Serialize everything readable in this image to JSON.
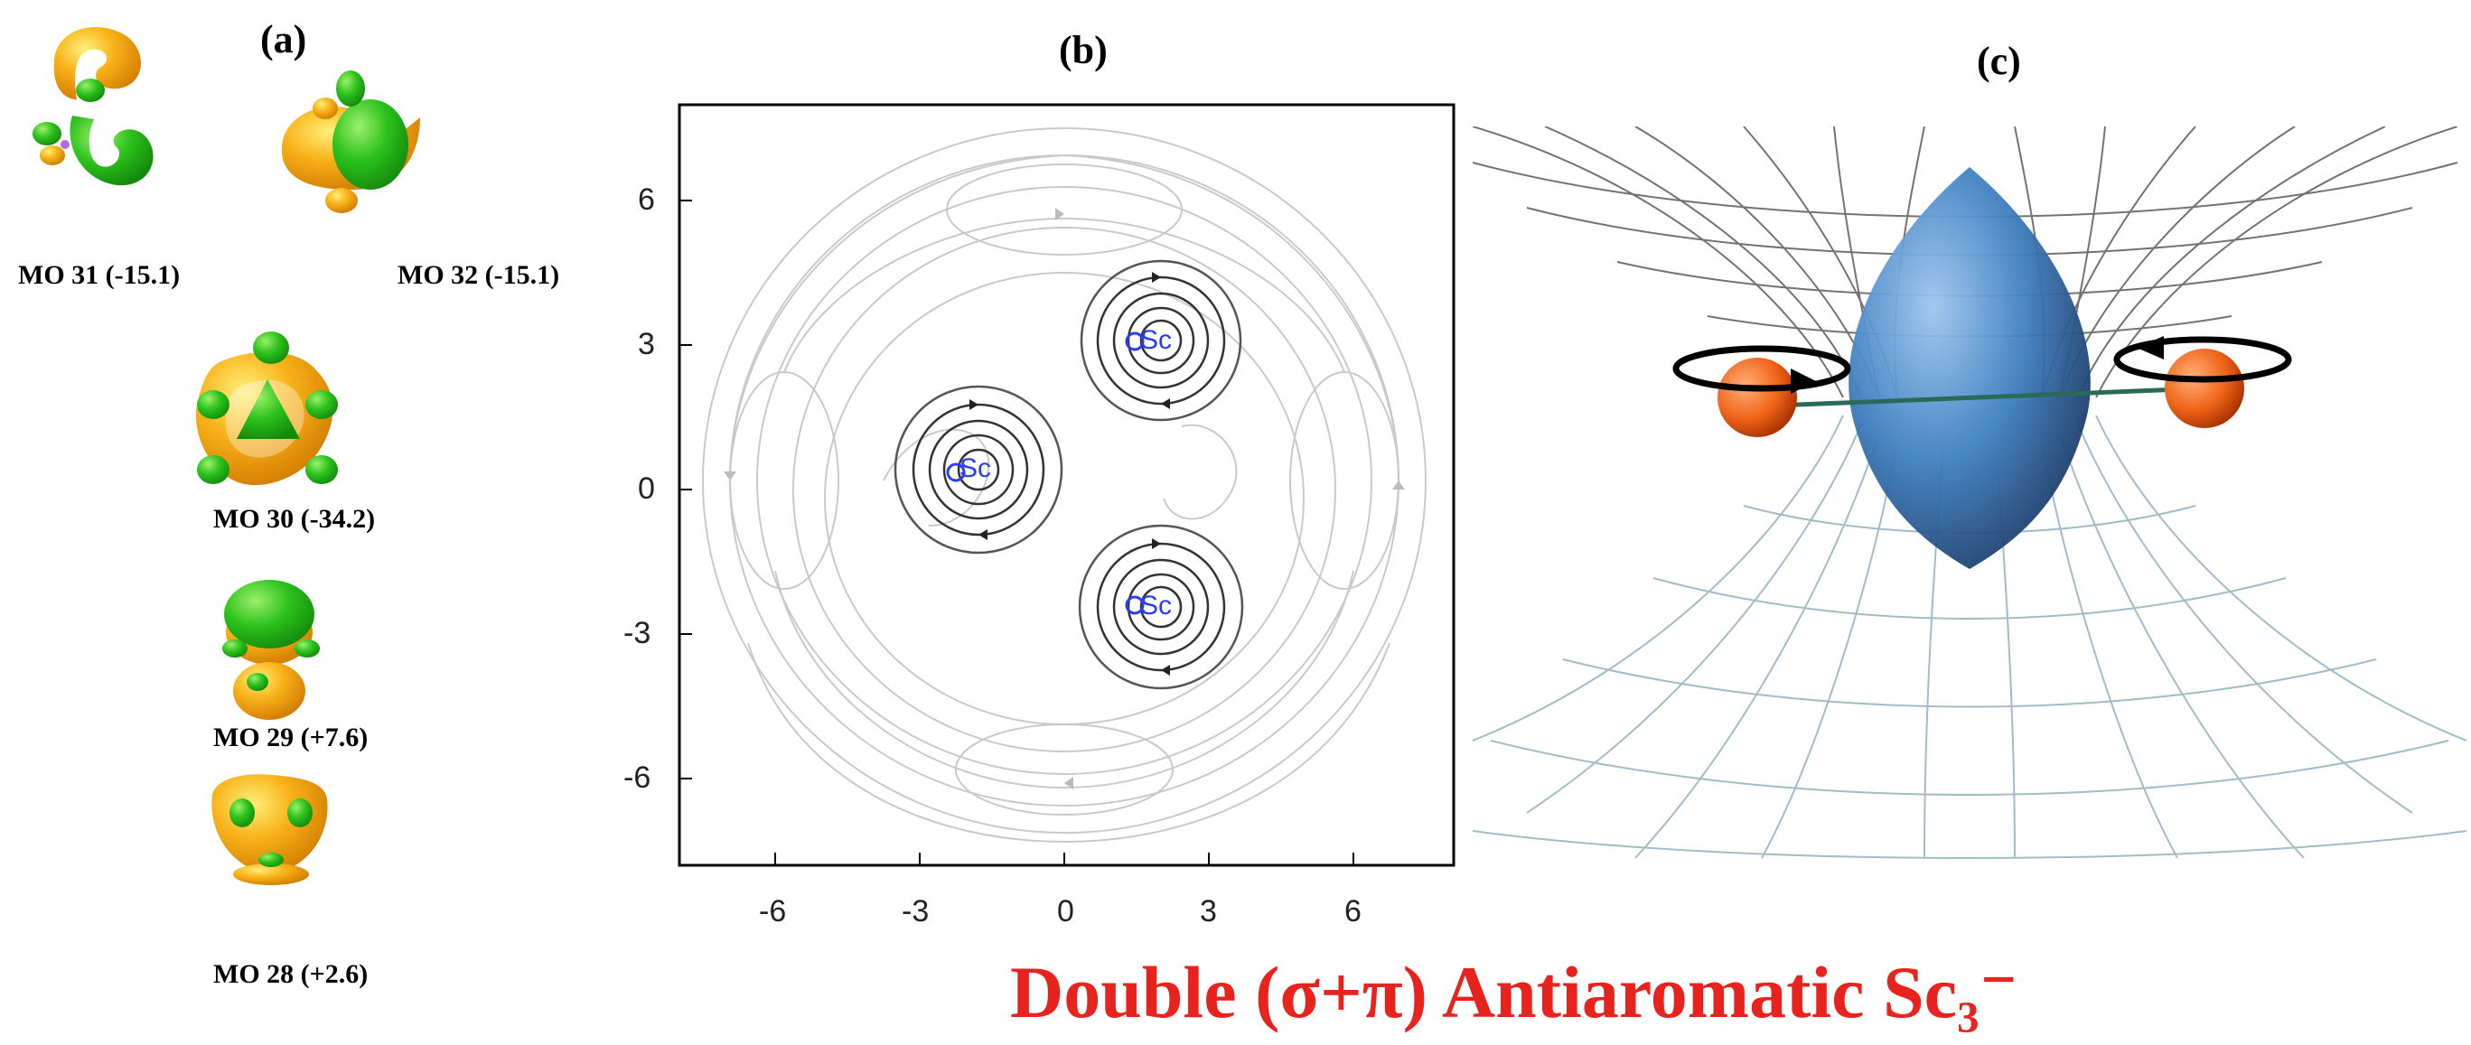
{
  "panels": {
    "a": {
      "label": "(a)",
      "orbitals": [
        {
          "label": "MO 31 (-15.1)"
        },
        {
          "label": "MO 32 (-15.1)"
        },
        {
          "label": "MO 30 (-34.2)"
        },
        {
          "label": "MO 29 (+7.6)"
        },
        {
          "label": "MO 28 (+2.6)"
        }
      ],
      "colors": {
        "phase_positive": "#f7a600",
        "phase_negative": "#25b818",
        "atom": "#b06cd8"
      }
    },
    "b": {
      "label": "(b)",
      "x_ticks": [
        "-6",
        "-3",
        "0",
        "3",
        "6"
      ],
      "y_ticks": [
        "6",
        "3",
        "0",
        "-3",
        "-6"
      ],
      "atom_label": "Sc",
      "atom_color": "#2a3cf0"
    },
    "c": {
      "label": "(c)",
      "colors": {
        "sphere": "#f06418",
        "torus": "#3f7fc0",
        "mesh_dark": "#444444",
        "mesh_light": "#9fbcc8"
      }
    }
  },
  "footer": {
    "text": "Double (σ+π) Antiaromatic Sc₃⁻",
    "color": "#e8221d"
  }
}
